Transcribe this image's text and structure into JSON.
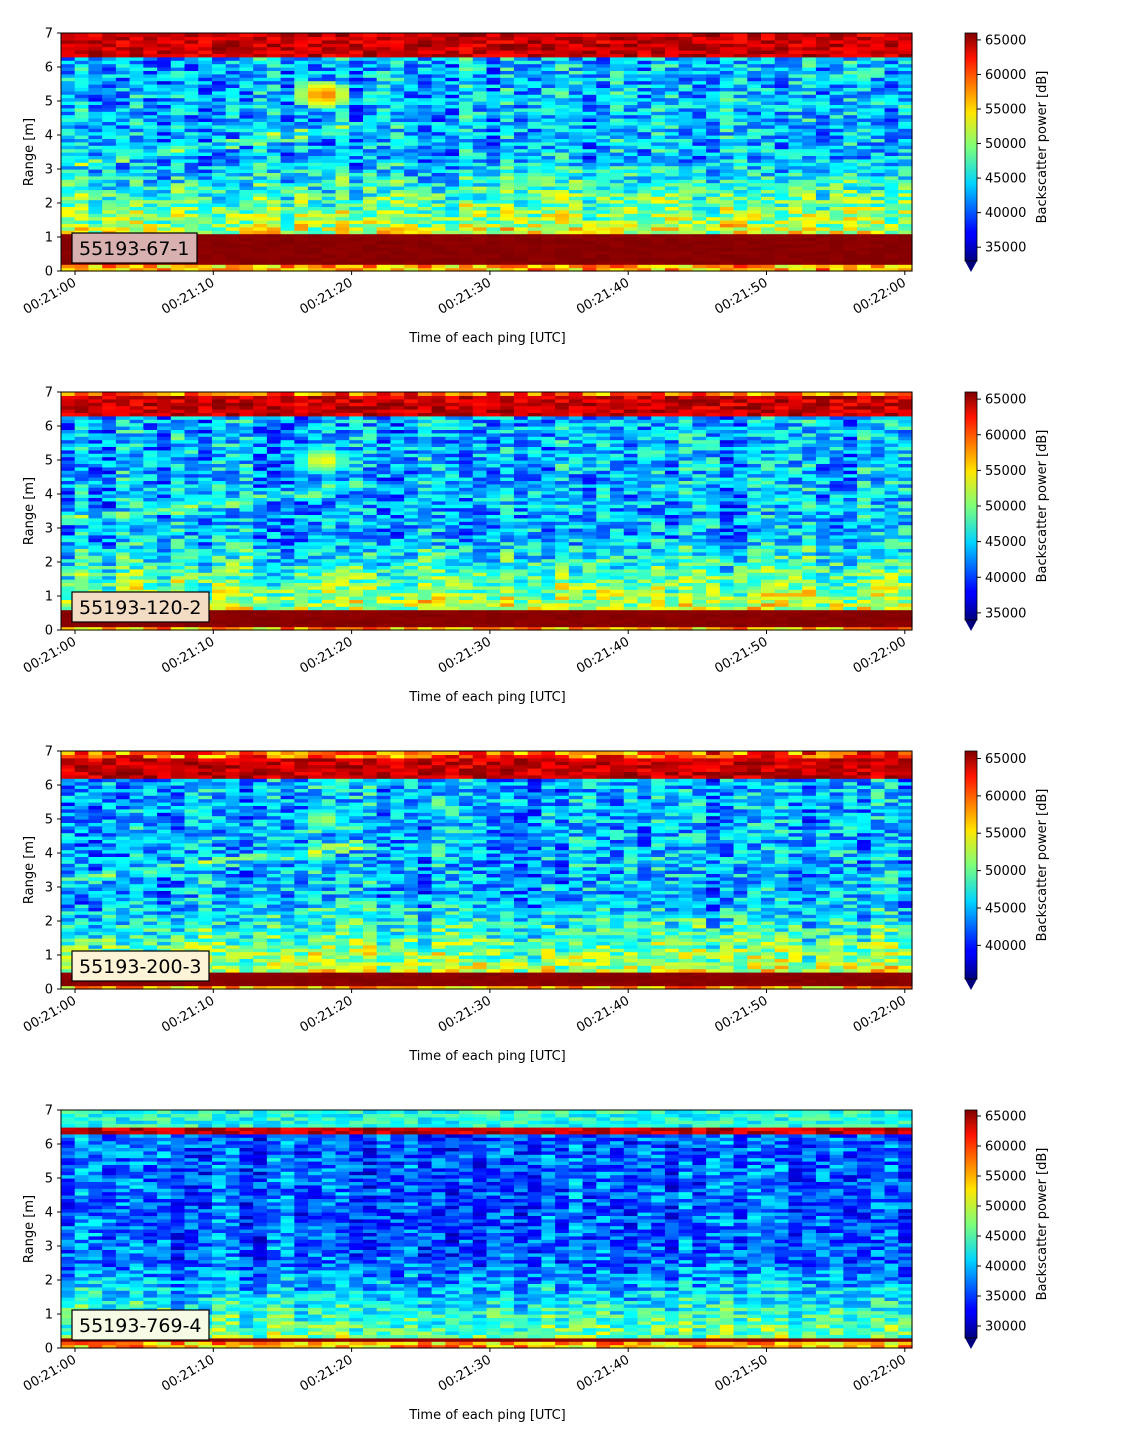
{
  "chart_data": [
    {
      "type": "heatmap",
      "label": "55193-67-1",
      "xlabel": "Time of each ping [UTC]",
      "ylabel": "Range [m]",
      "xticks": [
        "00:21:00",
        "00:21:10",
        "00:21:20",
        "00:21:30",
        "00:21:40",
        "00:21:50",
        "00:22:00"
      ],
      "yticks": [
        0,
        1,
        2,
        3,
        4,
        5,
        6,
        7
      ],
      "ylim": [
        0,
        7
      ],
      "colorbar": {
        "label": "Backscatter power [dB]",
        "ticks": [
          35000,
          40000,
          45000,
          50000,
          55000,
          60000,
          65000
        ],
        "range": [
          33000,
          66000
        ],
        "colormap": "jet",
        "extend": "min"
      },
      "features": {
        "bottom_band": [
          0.25,
          1.1
        ],
        "top_band": [
          6.35,
          7.0
        ],
        "target": {
          "time": "00:21:18",
          "range": 5.2,
          "level": 60000
        }
      },
      "label_box_color": "#d9b0b0"
    },
    {
      "type": "heatmap",
      "label": "55193-120-2",
      "xlabel": "Time of each ping [UTC]",
      "ylabel": "Range [m]",
      "xticks": [
        "00:21:00",
        "00:21:10",
        "00:21:20",
        "00:21:30",
        "00:21:40",
        "00:21:50",
        "00:22:00"
      ],
      "yticks": [
        0,
        1,
        2,
        3,
        4,
        5,
        6,
        7
      ],
      "ylim": [
        0,
        7
      ],
      "colorbar": {
        "label": "Backscatter power [dB]",
        "ticks": [
          35000,
          40000,
          45000,
          50000,
          55000,
          60000,
          65000
        ],
        "range": [
          34000,
          66000
        ],
        "colormap": "jet",
        "extend": "min"
      },
      "features": {
        "bottom_band": [
          0.15,
          0.6
        ],
        "top_band": [
          6.3,
          6.9
        ],
        "target": {
          "time": "00:21:18",
          "range": 5.0,
          "level": 56000
        }
      },
      "label_box_color": "#f3dcc4"
    },
    {
      "type": "heatmap",
      "label": "55193-200-3",
      "xlabel": "Time of each ping [UTC]",
      "ylabel": "Range [m]",
      "xticks": [
        "00:21:00",
        "00:21:10",
        "00:21:20",
        "00:21:30",
        "00:21:40",
        "00:21:50",
        "00:22:00"
      ],
      "yticks": [
        0,
        1,
        2,
        3,
        4,
        5,
        6,
        7
      ],
      "ylim": [
        0,
        7
      ],
      "colorbar": {
        "label": "Backscatter power [dB]",
        "ticks": [
          40000,
          45000,
          50000,
          55000,
          60000,
          65000
        ],
        "range": [
          35500,
          66000
        ],
        "colormap": "jet",
        "extend": "min"
      },
      "features": {
        "bottom_band": [
          0.1,
          0.45
        ],
        "top_band": [
          6.25,
          6.75
        ],
        "target": {
          "time": "00:21:18",
          "range": 5.0,
          "level": 54000
        }
      },
      "label_box_color": "#fdf3d6"
    },
    {
      "type": "heatmap",
      "label": "55193-769-4",
      "xlabel": "Time of each ping [UTC]",
      "ylabel": "Range [m]",
      "xticks": [
        "00:21:00",
        "00:21:10",
        "00:21:20",
        "00:21:30",
        "00:21:40",
        "00:21:50",
        "00:22:00"
      ],
      "yticks": [
        0,
        1,
        2,
        3,
        4,
        5,
        6,
        7
      ],
      "ylim": [
        0,
        7
      ],
      "colorbar": {
        "label": "Backscatter power [dB]",
        "ticks": [
          30000,
          35000,
          40000,
          45000,
          50000,
          55000,
          60000,
          65000
        ],
        "range": [
          28000,
          66000
        ],
        "colormap": "jet",
        "extend": "min"
      },
      "features": {
        "bottom_band": [
          0.2,
          0.35
        ],
        "top_band": [
          6.3,
          6.5
        ],
        "target": null
      },
      "label_box_color": "#f6fbe6"
    }
  ]
}
